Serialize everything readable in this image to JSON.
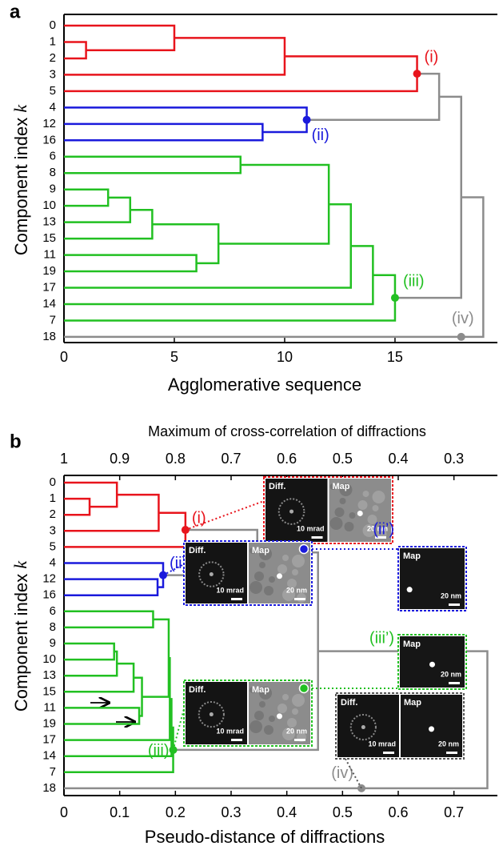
{
  "chart_data": [
    {
      "type": "dendrogram",
      "panel_label": "a",
      "leaves": [
        "0",
        "1",
        "2",
        "3",
        "5",
        "4",
        "12",
        "16",
        "6",
        "8",
        "9",
        "10",
        "13",
        "15",
        "11",
        "19",
        "17",
        "14",
        "7",
        "18"
      ],
      "ylabel": "Component index",
      "ylabel_var": "k",
      "xlabel": "Agglomerative sequence",
      "xlim": [
        0,
        19.64
      ],
      "xticks": [
        0,
        5,
        10,
        15
      ],
      "merges": [
        {
          "children": [
            1,
            2
          ],
          "height": 1,
          "color": "#e8141c"
        },
        {
          "children": [
            10,
            11
          ],
          "height": 2,
          "color": "#22c022"
        },
        {
          "children": [
            21,
            12
          ],
          "height": 3,
          "color": "#22c022"
        },
        {
          "children": [
            13,
            22
          ],
          "height": 4,
          "color": "#22c022"
        },
        {
          "children": [
            0,
            20
          ],
          "height": 5,
          "color": "#e8141c"
        },
        {
          "children": [
            14,
            15
          ],
          "height": 6,
          "color": "#22c022"
        },
        {
          "children": [
            23,
            25
          ],
          "height": 7,
          "color": "#22c022"
        },
        {
          "children": [
            8,
            9
          ],
          "height": 8,
          "color": "#22c022"
        },
        {
          "children": [
            6,
            7
          ],
          "height": 9,
          "color": "#1a1adc"
        },
        {
          "children": [
            24,
            3
          ],
          "height": 10,
          "color": "#e8141c"
        },
        {
          "children": [
            5,
            28
          ],
          "height": 11,
          "color": "#1a1adc"
        },
        {
          "children": [
            27,
            26
          ],
          "height": 12,
          "color": "#22c022"
        },
        {
          "children": [
            31,
            16
          ],
          "height": 13,
          "color": "#22c022"
        },
        {
          "children": [
            32,
            17
          ],
          "height": 14,
          "color": "#22c022"
        },
        {
          "children": [
            33,
            18
          ],
          "height": 15,
          "color": "#22c022"
        },
        {
          "children": [
            29,
            4
          ],
          "height": 16,
          "color": "#e8141c"
        },
        {
          "children": [
            35,
            30
          ],
          "height": 17,
          "color": "#8c8c8c"
        },
        {
          "children": [
            36,
            34
          ],
          "height": 18,
          "color": "#8c8c8c"
        },
        {
          "children": [
            37,
            19
          ],
          "height": 19,
          "color": "#8c8c8c"
        }
      ],
      "annotations": [
        {
          "text": "(i)",
          "merge": 15,
          "color": "#e8141c"
        },
        {
          "text": "(ii)",
          "merge": 10,
          "color": "#1a1adc"
        },
        {
          "text": "(iii)",
          "merge": 14,
          "color": "#22c022"
        },
        {
          "text": "(iv)",
          "leaf": 19,
          "x": 18,
          "color": "#8c8c8c"
        }
      ]
    },
    {
      "type": "dendrogram",
      "panel_label": "b",
      "leaves": [
        "0",
        "1",
        "2",
        "3",
        "5",
        "4",
        "12",
        "16",
        "6",
        "8",
        "9",
        "10",
        "13",
        "15",
        "11",
        "19",
        "17",
        "14",
        "7",
        "18"
      ],
      "ylabel": "Component index",
      "ylabel_var": "k",
      "xlabel": "Pseudo-distance of diffractions",
      "xlim": [
        0,
        0.778
      ],
      "xticks": [
        0,
        0.1,
        0.2,
        0.3,
        0.4,
        0.5,
        0.6,
        0.7
      ],
      "x2label": "Maximum of cross-correlation of diffractions",
      "x2lim": [
        1,
        0.222
      ],
      "x2ticks": [
        1,
        0.9,
        0.8,
        0.7,
        0.6,
        0.5,
        0.4,
        0.3
      ],
      "merges": [
        {
          "children": [
            1,
            2
          ],
          "height": 0.046,
          "color": "#e8141c"
        },
        {
          "children": [
            10,
            11
          ],
          "height": 0.09,
          "color": "#22c022"
        },
        {
          "children": [
            21,
            12
          ],
          "height": 0.095,
          "color": "#22c022"
        },
        {
          "children": [
            13,
            22
          ],
          "height": 0.125,
          "color": "#22c022"
        },
        {
          "children": [
            0,
            20
          ],
          "height": 0.095,
          "color": "#e8141c"
        },
        {
          "children": [
            14,
            15
          ],
          "height": 0.135,
          "color": "#22c022"
        },
        {
          "children": [
            23,
            25
          ],
          "height": 0.14,
          "color": "#22c022"
        },
        {
          "children": [
            8,
            9
          ],
          "height": 0.16,
          "color": "#22c022"
        },
        {
          "children": [
            6,
            7
          ],
          "height": 0.168,
          "color": "#1a1adc"
        },
        {
          "children": [
            24,
            3
          ],
          "height": 0.17,
          "color": "#e8141c"
        },
        {
          "children": [
            5,
            28
          ],
          "height": 0.178,
          "color": "#1a1adc"
        },
        {
          "children": [
            27,
            26
          ],
          "height": 0.188,
          "color": "#22c022"
        },
        {
          "children": [
            31,
            16
          ],
          "height": 0.19,
          "color": "#22c022"
        },
        {
          "children": [
            32,
            17
          ],
          "height": 0.193,
          "color": "#22c022"
        },
        {
          "children": [
            33,
            18
          ],
          "height": 0.196,
          "color": "#22c022"
        },
        {
          "children": [
            29,
            4
          ],
          "height": 0.218,
          "color": "#e8141c"
        },
        {
          "children": [
            35,
            30
          ],
          "height": 0.347,
          "color": "#8c8c8c"
        },
        {
          "children": [
            36,
            34
          ],
          "height": 0.456,
          "color": "#8c8c8c"
        },
        {
          "children": [
            37,
            19
          ],
          "height": 0.76,
          "color": "#8c8c8c"
        }
      ],
      "annotations": [
        {
          "text": "(i)",
          "merge": 15,
          "color": "#e8141c"
        },
        {
          "text": "(ii)",
          "merge": 10,
          "color": "#1a1adc"
        },
        {
          "text": "(iii)",
          "merge": 14,
          "color": "#22c022"
        },
        {
          "text": "(iv)",
          "leaf": 19,
          "x": 0.534,
          "color": "#8c8c8c"
        }
      ],
      "insets": [
        {
          "color": "#e8141c",
          "tiles": [
            {
              "label": "Diff.",
              "scale": "10 mrad"
            },
            {
              "label": "Map",
              "scale": "20 nm"
            }
          ]
        },
        {
          "color": "#1a1adc",
          "tiles": [
            {
              "label": "Diff.",
              "scale": "10 mrad"
            },
            {
              "label": "Map",
              "scale": "20 nm"
            }
          ]
        },
        {
          "color": "#1a1adc",
          "label": "(ii’)",
          "tiles": [
            {
              "label": "Map",
              "scale": "20 nm"
            }
          ]
        },
        {
          "color": "#22c022",
          "label": "(iii’)",
          "tiles": [
            {
              "label": "Map",
              "scale": "20 nm"
            }
          ]
        },
        {
          "color": "#22c022",
          "tiles": [
            {
              "label": "Diff.",
              "scale": "10 mrad"
            },
            {
              "label": "Map",
              "scale": "20 nm"
            }
          ]
        },
        {
          "color": "#555555",
          "tiles": [
            {
              "label": "Diff.",
              "scale": "10 mrad"
            },
            {
              "label": "Map",
              "scale": "20 nm"
            }
          ]
        }
      ]
    }
  ]
}
